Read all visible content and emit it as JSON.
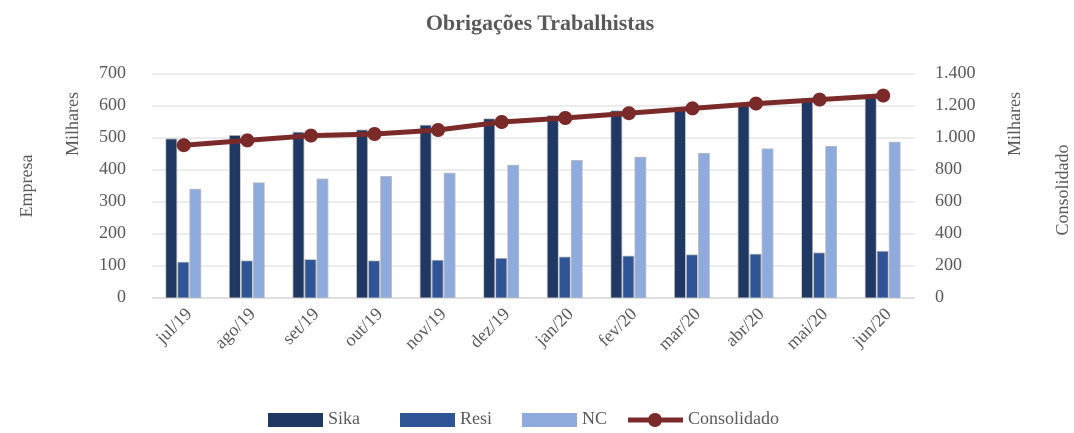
{
  "chart_data": {
    "type": "bar",
    "title": "Obrigações Trabalhistas",
    "y_label": "Empresa",
    "y_unit_label": "Milhares",
    "y2_label": "Consolidado",
    "y2_unit_label": "Milhares",
    "categories": [
      "jul/19",
      "ago/19",
      "set/19",
      "out/19",
      "nov/19",
      "dez/19",
      "jan/20",
      "fev/20",
      "mar/20",
      "abr/20",
      "mai/20",
      "jun/20"
    ],
    "series": [
      {
        "name": "Sika",
        "type": "bar",
        "color": "#1f3864",
        "values": [
          497,
          508,
          518,
          525,
          540,
          560,
          570,
          585,
          595,
          605,
          615,
          625
        ]
      },
      {
        "name": "Resi",
        "type": "bar",
        "color": "#2f5597",
        "values": [
          112,
          116,
          120,
          116,
          118,
          124,
          128,
          131,
          135,
          137,
          141,
          146
        ]
      },
      {
        "name": "NC",
        "type": "bar",
        "color": "#8faadc",
        "values": [
          340,
          360,
          372,
          380,
          390,
          415,
          430,
          440,
          452,
          466,
          474,
          487
        ]
      },
      {
        "name": "Consolidado",
        "type": "line",
        "axis": "y2",
        "color": "#7b2a2a",
        "values": [
          955,
          985,
          1015,
          1025,
          1050,
          1100,
          1125,
          1155,
          1185,
          1215,
          1240,
          1265
        ]
      }
    ],
    "ylim": [
      0,
      700
    ],
    "yticks": [
      0,
      100,
      200,
      300,
      400,
      500,
      600,
      700
    ],
    "y2lim": [
      0,
      1400
    ],
    "y2ticks": [
      0,
      200,
      400,
      600,
      800,
      {
        "value": 1000,
        "label": "1.000"
      },
      {
        "value": 1200,
        "label": "1.200"
      },
      {
        "value": 1400,
        "label": "1.400"
      }
    ],
    "grid": true,
    "legend": "bottom"
  }
}
